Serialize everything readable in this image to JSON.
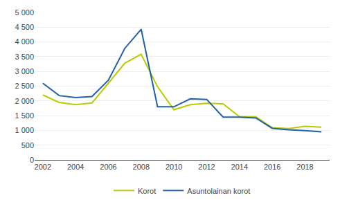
{
  "chart_data": {
    "type": "line",
    "x": [
      2002,
      2003,
      2004,
      2005,
      2006,
      2007,
      2008,
      2009,
      2010,
      2011,
      2012,
      2013,
      2014,
      2015,
      2016,
      2017,
      2018,
      2019
    ],
    "series": [
      {
        "name": "Korot",
        "color": "#b8cc00",
        "values": [
          2200,
          1950,
          1870,
          1930,
          2600,
          3280,
          3580,
          2480,
          1700,
          1870,
          1920,
          1900,
          1460,
          1460,
          1090,
          1060,
          1140,
          1110
        ]
      },
      {
        "name": "Asuntolainan korot",
        "color": "#2060a8",
        "values": [
          2600,
          2180,
          2110,
          2150,
          2700,
          3780,
          4430,
          1800,
          1800,
          2070,
          2050,
          1450,
          1450,
          1420,
          1070,
          1020,
          990,
          950
        ]
      }
    ],
    "xlim": [
      2001.5,
      2019.5
    ],
    "xticks": [
      2002,
      2004,
      2006,
      2008,
      2010,
      2012,
      2014,
      2016,
      2018
    ],
    "ylim": [
      0,
      5000
    ],
    "yticks": [
      0,
      500,
      {
        "value": 1000,
        "label": "1 000"
      },
      {
        "value": 1500,
        "label": "1 500"
      },
      {
        "value": 2000,
        "label": "2 000"
      },
      {
        "value": 2500,
        "label": "2 500"
      },
      {
        "value": 3000,
        "label": "3 000"
      },
      {
        "value": 3500,
        "label": "3 500"
      },
      {
        "value": 4000,
        "label": "4 000"
      },
      {
        "value": 4500,
        "label": "4 500"
      },
      {
        "value": 5000,
        "label": "5 000"
      }
    ],
    "grid": "y",
    "legend": "bottom"
  }
}
